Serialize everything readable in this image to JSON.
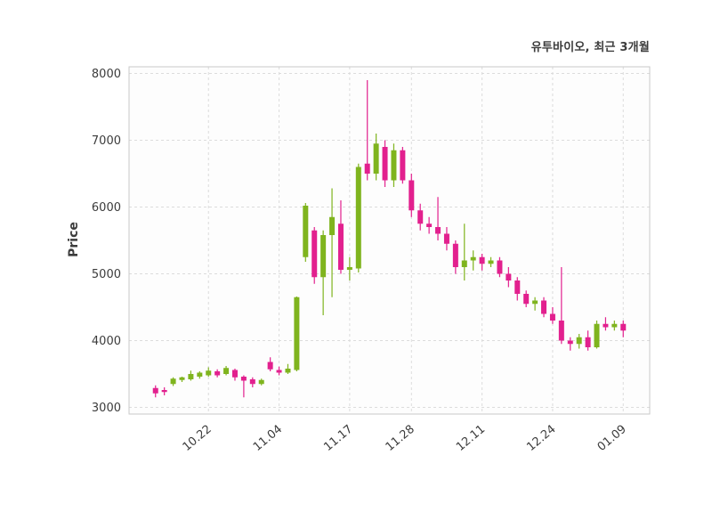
{
  "header": {
    "title": "유투바이오, 최근 3개월"
  },
  "chart_data": {
    "type": "candlestick",
    "title": "유투바이오, 최근 3개월",
    "xlabel": "",
    "ylabel": "Price",
    "ylim": [
      2900,
      8100
    ],
    "grid": "dashed",
    "y_ticks": [
      3000,
      4000,
      5000,
      6000,
      7000,
      8000
    ],
    "x_tick_labels": [
      "10.22",
      "11.04",
      "11.17",
      "11.28",
      "12.11",
      "12.24",
      "01.09"
    ],
    "x_tick_indices": [
      6,
      14,
      22,
      29,
      37,
      45,
      53
    ],
    "colors": {
      "up": "#7fb41e",
      "down": "#e2208e",
      "grid": "#dcdcdc",
      "border": "#c9c9c9",
      "text": "#3c3c3c",
      "plot_bg": "#fdfdfd"
    },
    "candles_format": [
      "open",
      "high",
      "low",
      "close"
    ],
    "candles": [
      [
        3290,
        3330,
        3150,
        3210
      ],
      [
        3260,
        3300,
        3180,
        3230
      ],
      [
        3350,
        3450,
        3320,
        3430
      ],
      [
        3410,
        3460,
        3380,
        3450
      ],
      [
        3420,
        3550,
        3400,
        3500
      ],
      [
        3460,
        3540,
        3430,
        3520
      ],
      [
        3480,
        3600,
        3460,
        3550
      ],
      [
        3540,
        3570,
        3450,
        3480
      ],
      [
        3500,
        3620,
        3480,
        3590
      ],
      [
        3560,
        3580,
        3400,
        3450
      ],
      [
        3460,
        3480,
        3150,
        3400
      ],
      [
        3420,
        3450,
        3300,
        3350
      ],
      [
        3350,
        3430,
        3330,
        3410
      ],
      [
        3680,
        3750,
        3540,
        3570
      ],
      [
        3560,
        3610,
        3480,
        3520
      ],
      [
        3520,
        3650,
        3500,
        3580
      ],
      [
        3560,
        4660,
        3540,
        4650
      ],
      [
        5250,
        6060,
        5180,
        6020
      ],
      [
        5650,
        5700,
        4850,
        4950
      ],
      [
        4950,
        5650,
        4380,
        5580
      ],
      [
        5580,
        6280,
        4650,
        5850
      ],
      [
        5750,
        6100,
        5000,
        5060
      ],
      [
        5060,
        5250,
        4900,
        5100
      ],
      [
        5080,
        6650,
        5020,
        6600
      ],
      [
        6650,
        7900,
        6400,
        6500
      ],
      [
        6500,
        7100,
        6400,
        6950
      ],
      [
        6900,
        7000,
        6300,
        6400
      ],
      [
        6400,
        6950,
        6300,
        6850
      ],
      [
        6850,
        6900,
        6350,
        6400
      ],
      [
        6400,
        6500,
        5850,
        5950
      ],
      [
        5950,
        6050,
        5650,
        5750
      ],
      [
        5750,
        5850,
        5600,
        5700
      ],
      [
        5700,
        6150,
        5500,
        5600
      ],
      [
        5600,
        5700,
        5350,
        5450
      ],
      [
        5450,
        5500,
        5000,
        5100
      ],
      [
        5100,
        5750,
        4900,
        5200
      ],
      [
        5200,
        5350,
        5050,
        5250
      ],
      [
        5250,
        5300,
        5050,
        5150
      ],
      [
        5150,
        5250,
        5100,
        5200
      ],
      [
        5200,
        5250,
        4950,
        5000
      ],
      [
        5000,
        5100,
        4800,
        4900
      ],
      [
        4900,
        4950,
        4600,
        4700
      ],
      [
        4700,
        4750,
        4500,
        4550
      ],
      [
        4550,
        4650,
        4450,
        4600
      ],
      [
        4600,
        4650,
        4350,
        4400
      ],
      [
        4400,
        4500,
        4250,
        4300
      ],
      [
        4300,
        5100,
        3950,
        4000
      ],
      [
        4000,
        4050,
        3850,
        3950
      ],
      [
        3950,
        4100,
        3880,
        4050
      ],
      [
        4050,
        4150,
        3850,
        3900
      ],
      [
        3900,
        4300,
        3880,
        4250
      ],
      [
        4250,
        4350,
        4150,
        4200
      ],
      [
        4200,
        4300,
        4150,
        4250
      ],
      [
        4250,
        4300,
        4050,
        4150
      ]
    ]
  }
}
